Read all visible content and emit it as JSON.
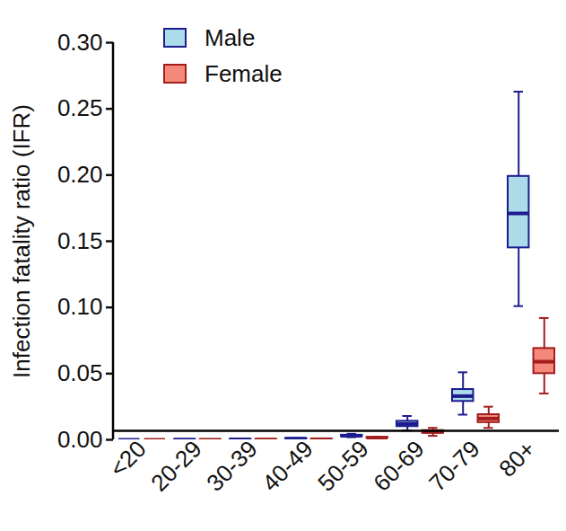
{
  "chart_data": {
    "type": "box",
    "y_label": "Infection fatality ratio (IFR)",
    "categories": [
      "<20",
      "20-29",
      "30-39",
      "40-49",
      "50-59",
      "60-69",
      "70-79",
      "80+"
    ],
    "series": [
      {
        "name": "Male",
        "color": "#acdcea",
        "min": [
          0.0,
          5e-05,
          0.0002,
          0.0005,
          0.002,
          0.007,
          0.019,
          0.101
        ],
        "q1": [
          0.0,
          0.0001,
          0.0003,
          0.0007,
          0.0025,
          0.01,
          0.029,
          0.145
        ],
        "median": [
          0.0,
          0.0001,
          0.0003,
          0.0008,
          0.003,
          0.012,
          0.033,
          0.171
        ],
        "q3": [
          0.0,
          0.0002,
          0.0004,
          0.001,
          0.0035,
          0.014,
          0.038,
          0.199
        ],
        "max": [
          0.0,
          0.0003,
          0.0006,
          0.0013,
          0.0045,
          0.018,
          0.051,
          0.263
        ]
      },
      {
        "name": "Female",
        "color": "#f4897b",
        "min": [
          0.0,
          2e-05,
          0.0001,
          0.0003,
          0.001,
          0.003,
          0.009,
          0.035
        ],
        "q1": [
          0.0,
          4e-05,
          0.00015,
          0.0004,
          0.0013,
          0.005,
          0.013,
          0.05
        ],
        "median": [
          0.0,
          5e-05,
          0.0002,
          0.0004,
          0.0015,
          0.006,
          0.016,
          0.059
        ],
        "q3": [
          0.0,
          6e-05,
          0.00025,
          0.0005,
          0.0018,
          0.007,
          0.019,
          0.069
        ],
        "max": [
          0.0,
          0.0001,
          0.0003,
          0.0007,
          0.0022,
          0.009,
          0.025,
          0.092
        ]
      }
    ],
    "reference_line": 0.0068,
    "ylim": [
      0,
      0.3
    ],
    "yticks": [
      {
        "value": 0,
        "label": "0.00"
      },
      {
        "value": 0.05,
        "label": "0.05"
      },
      {
        "value": 0.1,
        "label": "0.10"
      },
      {
        "value": 0.15,
        "label": "0.15"
      },
      {
        "value": 0.2,
        "label": "0.20"
      },
      {
        "value": 0.25,
        "label": "0.25"
      },
      {
        "value": 0.3,
        "label": "0.30"
      }
    ],
    "grid": false,
    "legend": "top-left"
  }
}
